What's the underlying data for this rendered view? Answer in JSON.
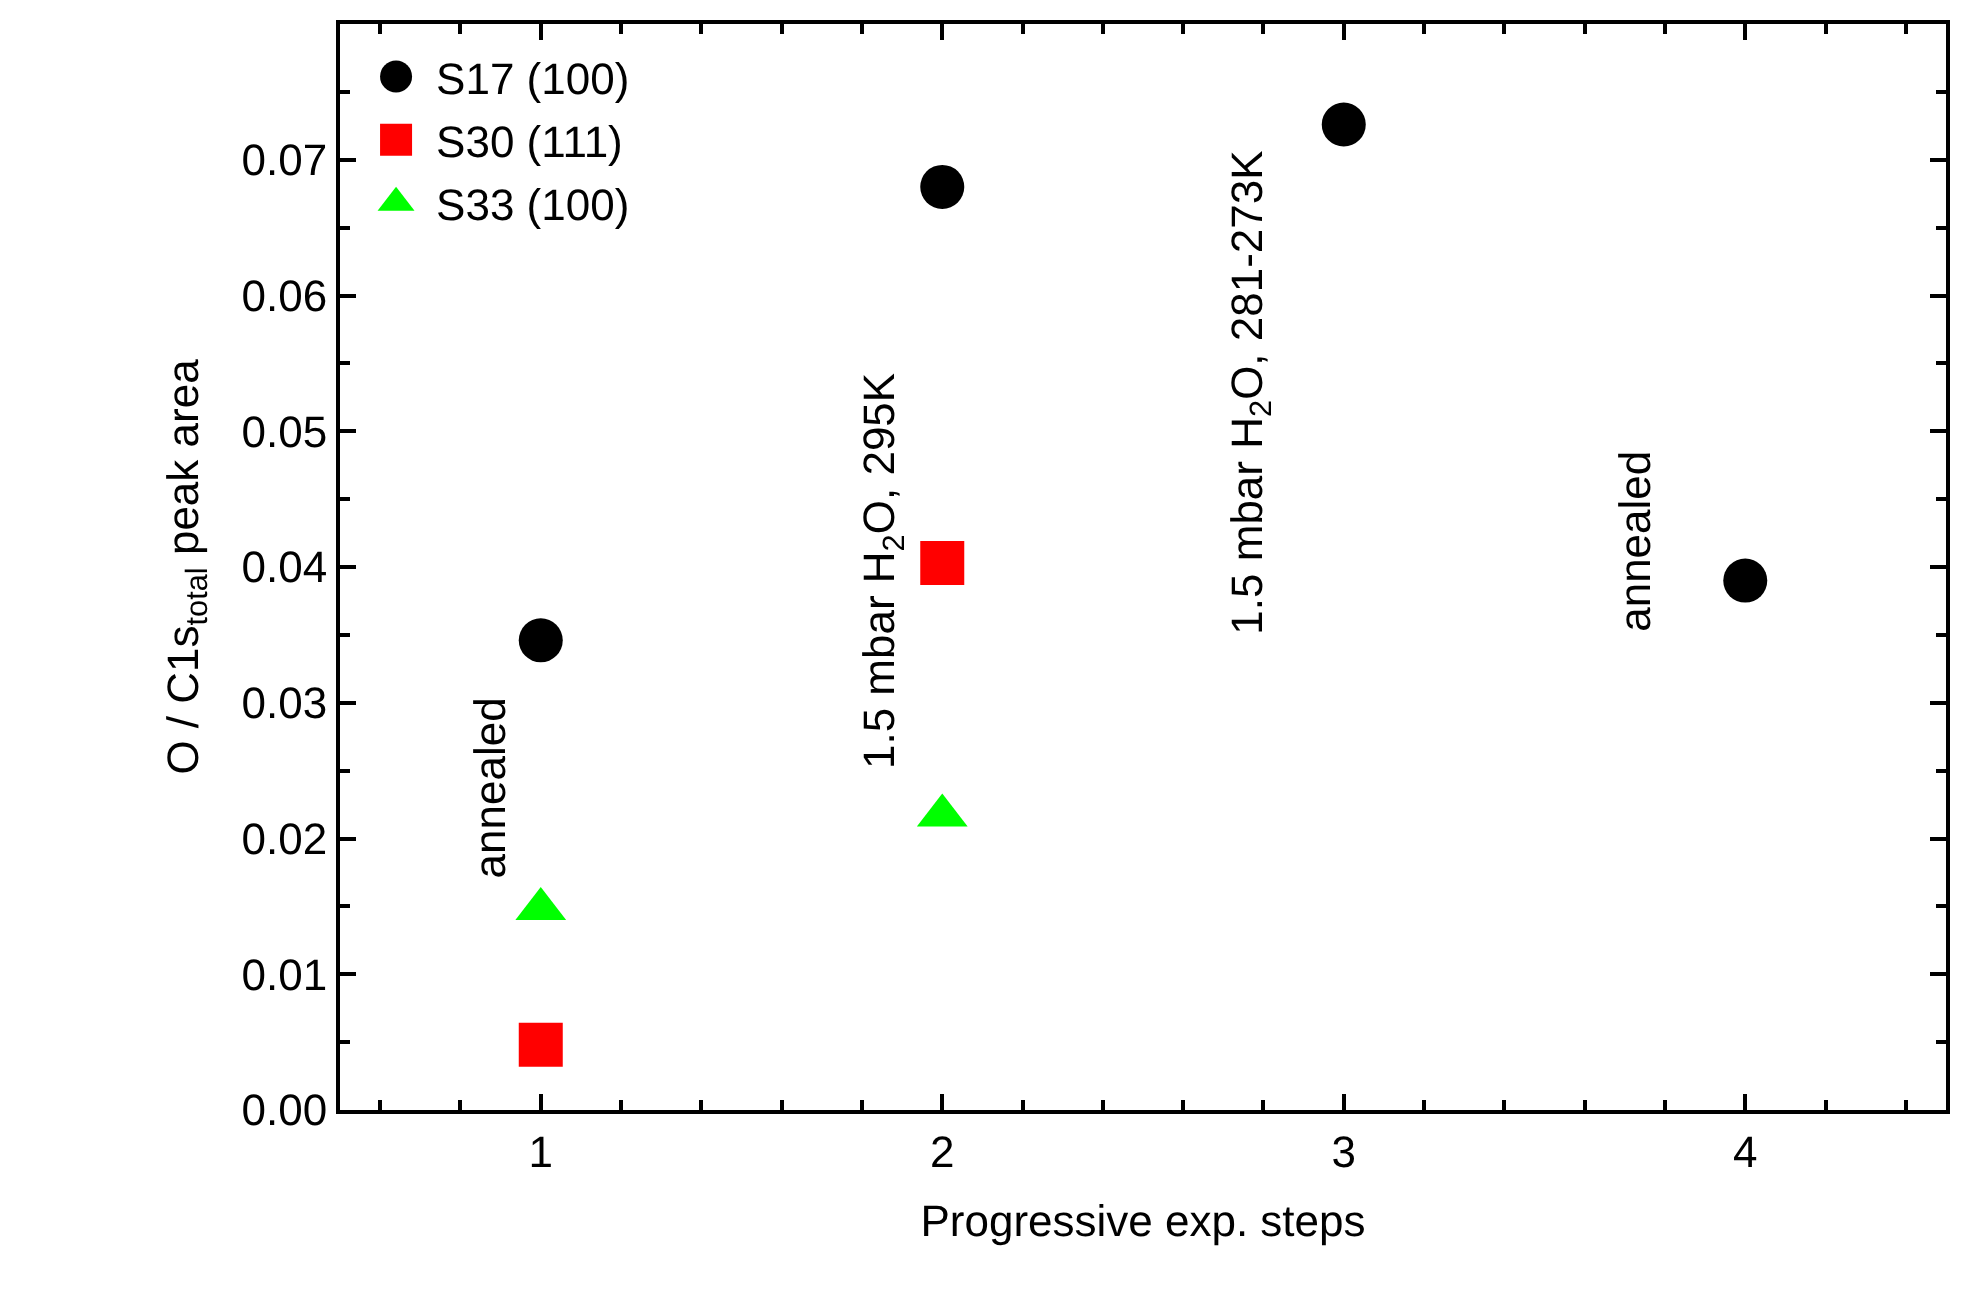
{
  "chart_data": {
    "type": "scatter",
    "xlabel": "Progressive exp. steps",
    "ylabel": "O / C1s$_{total}$ peak area",
    "xlim": [
      0.5,
      4.5
    ],
    "xticks": [
      1,
      2,
      3,
      4
    ],
    "ylim": [
      0,
      0.08
    ],
    "yticks": [
      {
        "value": 0,
        "label": "0.00"
      },
      {
        "value": 0.01,
        "label": "0.01"
      },
      {
        "value": 0.02,
        "label": "0.02"
      },
      {
        "value": 0.03,
        "label": "0.03"
      },
      {
        "value": 0.04,
        "label": "0.04"
      },
      {
        "value": 0.05,
        "label": "0.05"
      },
      {
        "value": 0.06,
        "label": "0.06"
      },
      {
        "value": 0.07,
        "label": "0.07"
      }
    ],
    "legend": "top left",
    "series": [
      {
        "name": "S17 (100)",
        "color": "#000000",
        "marker": "circle",
        "x": [
          1,
          2,
          3,
          4
        ],
        "values": [
          0.0346,
          0.068,
          0.0726,
          0.039
        ]
      },
      {
        "name": "S30 (111)",
        "color": "#ff0000",
        "marker": "square",
        "x": [
          1,
          2
        ],
        "values": [
          0.0048,
          0.0403
        ]
      },
      {
        "name": "S33 (100)",
        "color": "#00ff00",
        "marker": "triangle",
        "x": [
          1,
          2
        ],
        "values": [
          0.0148,
          0.0217
        ]
      }
    ],
    "annotations": [
      "annealed",
      "1.5 mbar H$_{2}$O, 295K",
      "1.5 mbar H$_{2}$O, 281-273K",
      "annealed"
    ]
  }
}
